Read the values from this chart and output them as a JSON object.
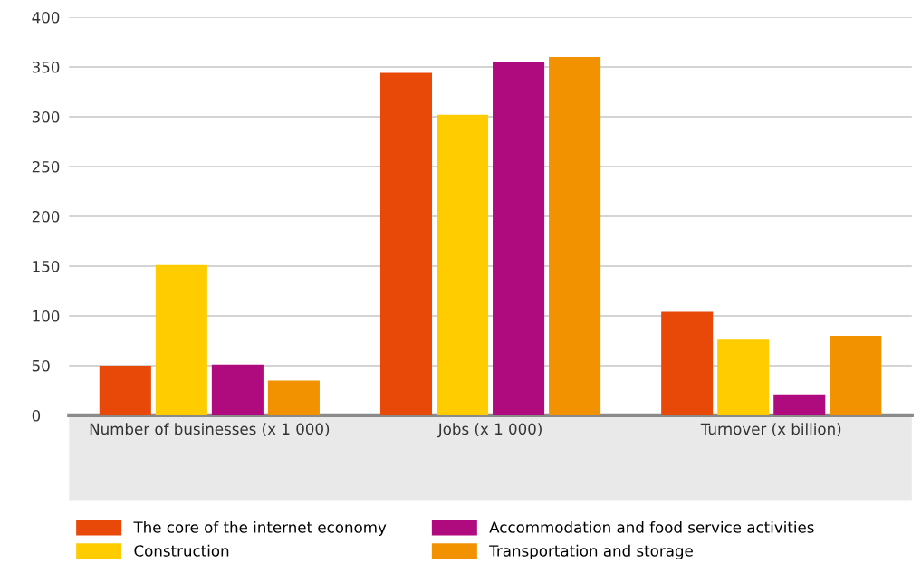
{
  "chart_data": {
    "type": "bar",
    "categories": [
      "Number of businesses (x 1 000)",
      "Jobs (x 1 000)",
      "Turnover (x billion)"
    ],
    "series": [
      {
        "name": "The core of the internet economy",
        "color": "#e84808",
        "values": [
          50,
          344,
          104
        ]
      },
      {
        "name": "Construction",
        "color": "#ffcc00",
        "values": [
          151,
          302,
          76
        ]
      },
      {
        "name": "Accommodation and food service activities",
        "color": "#af0b7f",
        "values": [
          51,
          355,
          21
        ]
      },
      {
        "name": "Transportation and storage",
        "color": "#f39200",
        "values": [
          35,
          360,
          80
        ]
      }
    ],
    "ylim": [
      0,
      400
    ],
    "yticks": [
      0,
      50,
      100,
      150,
      200,
      250,
      300,
      350,
      400
    ],
    "grid": "y",
    "legend": "bottom"
  }
}
